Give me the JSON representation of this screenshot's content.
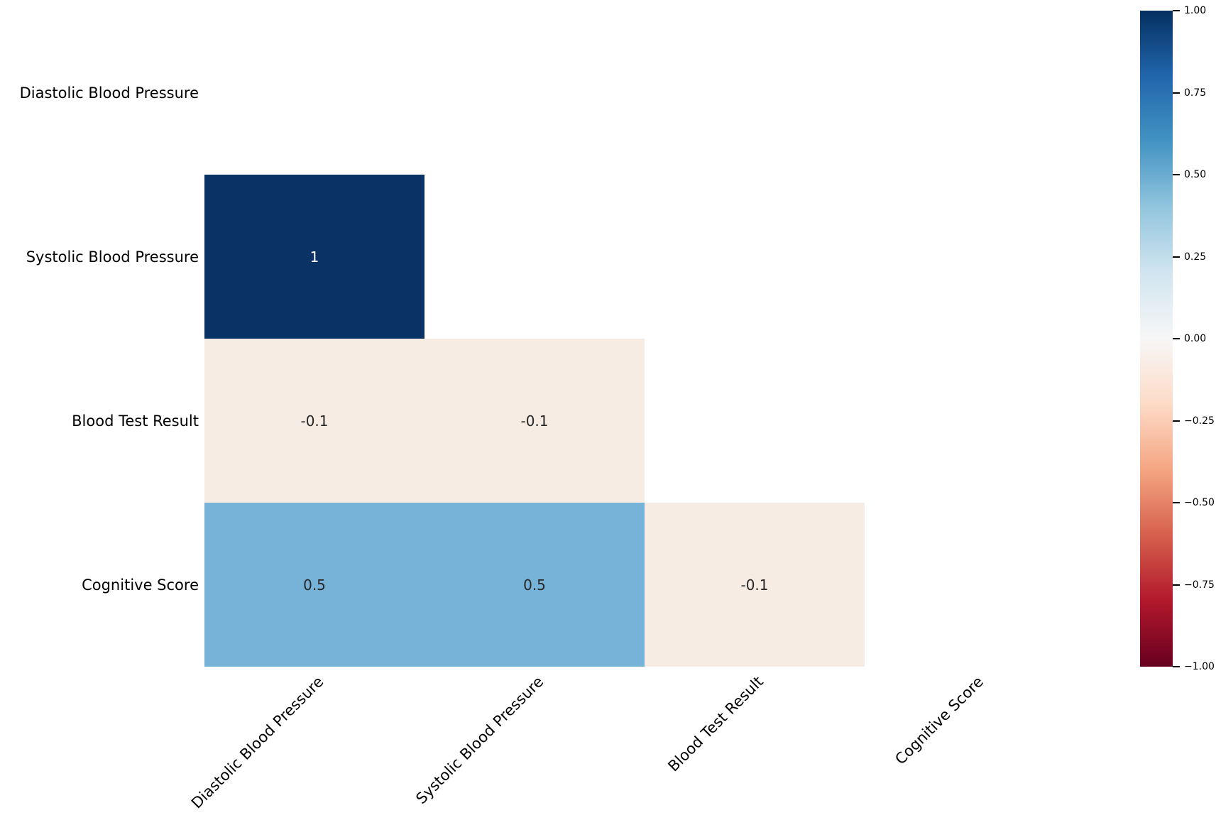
{
  "chart_data": {
    "type": "heatmap",
    "subtype": "correlation-matrix-lower-triangle",
    "colormap": "RdBu",
    "mask": "upper triangle including diagonal is blank",
    "row_labels": [
      "Diastolic Blood Pressure",
      "Systolic Blood Pressure",
      "Blood Test Result",
      "Cognitive Score"
    ],
    "col_labels": [
      "Diastolic Blood Pressure",
      "Systolic Blood Pressure",
      "Blood Test Result",
      "Cognitive Score"
    ],
    "matrix": [
      [
        null,
        null,
        null,
        null
      ],
      [
        1,
        null,
        null,
        null
      ],
      [
        -0.1,
        -0.1,
        null,
        null
      ],
      [
        0.5,
        0.5,
        -0.1,
        null
      ]
    ],
    "cells": [
      {
        "row": 1,
        "col": 0,
        "label": "1",
        "value": 1,
        "bg": "#0a3264",
        "text_color": "#ffffff"
      },
      {
        "row": 2,
        "col": 0,
        "label": "-0.1",
        "value": -0.1,
        "bg": "#f7ece4",
        "text_color": "#262626"
      },
      {
        "row": 2,
        "col": 1,
        "label": "-0.1",
        "value": -0.1,
        "bg": "#f7ece4",
        "text_color": "#262626"
      },
      {
        "row": 3,
        "col": 0,
        "label": "0.5",
        "value": 0.5,
        "bg": "#77b3d8",
        "text_color": "#262626"
      },
      {
        "row": 3,
        "col": 1,
        "label": "0.5",
        "value": 0.5,
        "bg": "#77b3d8",
        "text_color": "#262626"
      },
      {
        "row": 3,
        "col": 2,
        "label": "-0.1",
        "value": -0.1,
        "bg": "#f7ece4",
        "text_color": "#262626"
      }
    ],
    "colorbar": {
      "vmin": -1.0,
      "vmax": 1.0,
      "tick_labels": [
        "1.00",
        "0.75",
        "0.50",
        "0.25",
        "0.00",
        "−0.25",
        "−0.50",
        "−0.75",
        "−1.00"
      ],
      "tick_values": [
        1.0,
        0.75,
        0.5,
        0.25,
        0.0,
        -0.25,
        -0.5,
        -0.75,
        -1.0
      ],
      "gradient_stops_top_to_bottom": [
        "#053061",
        "#2166ac",
        "#4393c3",
        "#92c5de",
        "#d1e5f0",
        "#f7f7f7",
        "#fddbc7",
        "#f4a582",
        "#d6604d",
        "#b2182b",
        "#67001f"
      ]
    },
    "title": "",
    "grid": false,
    "legend_position": "colorbar-right"
  }
}
